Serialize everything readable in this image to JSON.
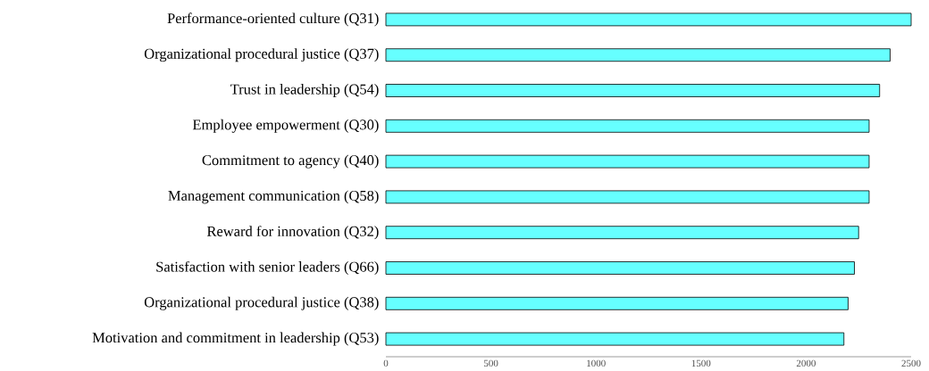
{
  "chart_data": {
    "type": "bar",
    "orientation": "horizontal",
    "categories": [
      "Performance-oriented culture (Q31)",
      "Organizational procedural justice (Q37)",
      "Trust in leadership (Q54)",
      "Employee empowerment (Q30)",
      "Commitment to agency (Q40)",
      "Management communication (Q58)",
      "Reward for innovation (Q32)",
      "Satisfaction with senior leaders (Q66)",
      "Organizational procedural justice (Q38)",
      "Motivation and commitment in leadership (Q53)"
    ],
    "values": [
      2500,
      2400,
      2350,
      2300,
      2300,
      2300,
      2250,
      2230,
      2200,
      2180
    ],
    "color": "#66ffff",
    "xlim": [
      0,
      2500
    ],
    "xticks": [
      0,
      500,
      1000,
      1500,
      2000,
      2500
    ]
  }
}
